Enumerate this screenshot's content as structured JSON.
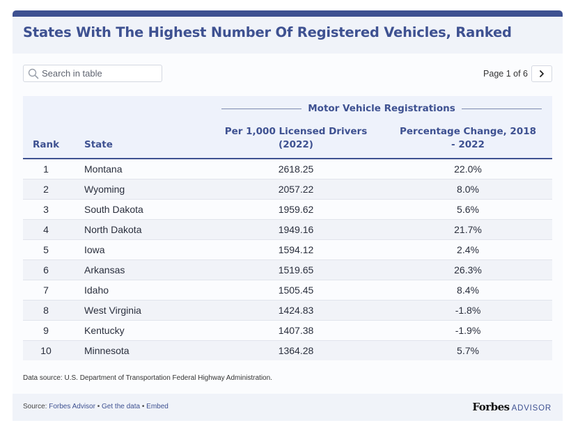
{
  "header": {
    "title": "States With The Highest Number Of Registered Vehicles, Ranked"
  },
  "search": {
    "placeholder": "Search in table"
  },
  "pagination": {
    "page_text": "Page 1 of 6"
  },
  "table": {
    "group_header": "Motor Vehicle Registrations",
    "columns": {
      "rank": "Rank",
      "state": "State",
      "per_1000": "Per 1,000 Licensed Drivers (2022)",
      "pct_change": "Percentage Change, 2018 - 2022"
    },
    "rows": [
      {
        "rank": "1",
        "state": "Montana",
        "per_1000": "2618.25",
        "pct_change": "22.0%"
      },
      {
        "rank": "2",
        "state": "Wyoming",
        "per_1000": "2057.22",
        "pct_change": "8.0%"
      },
      {
        "rank": "3",
        "state": "South Dakota",
        "per_1000": "1959.62",
        "pct_change": "5.6%"
      },
      {
        "rank": "4",
        "state": "North Dakota",
        "per_1000": "1949.16",
        "pct_change": "21.7%"
      },
      {
        "rank": "5",
        "state": "Iowa",
        "per_1000": "1594.12",
        "pct_change": "2.4%"
      },
      {
        "rank": "6",
        "state": "Arkansas",
        "per_1000": "1519.65",
        "pct_change": "26.3%"
      },
      {
        "rank": "7",
        "state": "Idaho",
        "per_1000": "1505.45",
        "pct_change": "8.4%"
      },
      {
        "rank": "8",
        "state": "West Virginia",
        "per_1000": "1424.83",
        "pct_change": "-1.8%"
      },
      {
        "rank": "9",
        "state": "Kentucky",
        "per_1000": "1407.38",
        "pct_change": "-1.9%"
      },
      {
        "rank": "10",
        "state": "Minnesota",
        "per_1000": "1364.28",
        "pct_change": "5.7%"
      }
    ]
  },
  "note": "Data source: U.S. Department of Transportation Federal Highway Administration.",
  "footer": {
    "source_label": "Source:",
    "source_link": "Forbes Advisor",
    "get_data_link": "Get the data",
    "embed_link": "Embed",
    "separator": "•",
    "brand_forbes": "Forbes",
    "brand_advisor": "ADVISOR"
  },
  "colors": {
    "accent": "#3e5191",
    "header_bg": "#f0f3f9",
    "row_alt_bg": "#f1f3f8"
  },
  "icons": {
    "search": "search-icon",
    "next": "chevron-right-icon"
  }
}
